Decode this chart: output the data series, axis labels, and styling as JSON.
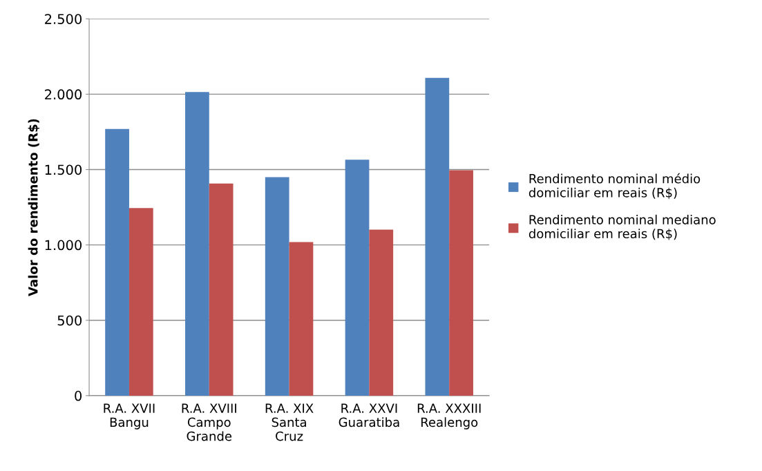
{
  "chart_data": {
    "type": "bar",
    "ylabel": "Valor do rendimento (R$)",
    "categories": [
      "R.A. XVII\nBangu",
      "R.A. XVIII\nCampo\nGrande",
      "R.A. XIX\nSanta\nCruz",
      "R.A. XXVI\nGuaratiba",
      "R.A. XXXIII\nRealengo"
    ],
    "series": [
      {
        "name": "Rendimento nominal médio\ndomiciliar em reais (R$)",
        "color": "#4f81bd",
        "values": [
          1769,
          2014,
          1450,
          1565,
          2108
        ]
      },
      {
        "name": "Rendimento nominal mediano\ndomiciliar em reais (R$)",
        "color": "#c0504d",
        "values": [
          1245,
          1407,
          1019,
          1101,
          1496
        ]
      }
    ],
    "ylim": [
      0,
      2500
    ],
    "yticks": [
      {
        "value": 0,
        "label": "0"
      },
      {
        "value": 500,
        "label": "500"
      },
      {
        "value": 1000,
        "label": "1.000"
      },
      {
        "value": 1500,
        "label": "1.500"
      },
      {
        "value": 2000,
        "label": "2.000"
      },
      {
        "value": 2500,
        "label": "2.500"
      }
    ],
    "grid": "y",
    "legend": "right"
  }
}
